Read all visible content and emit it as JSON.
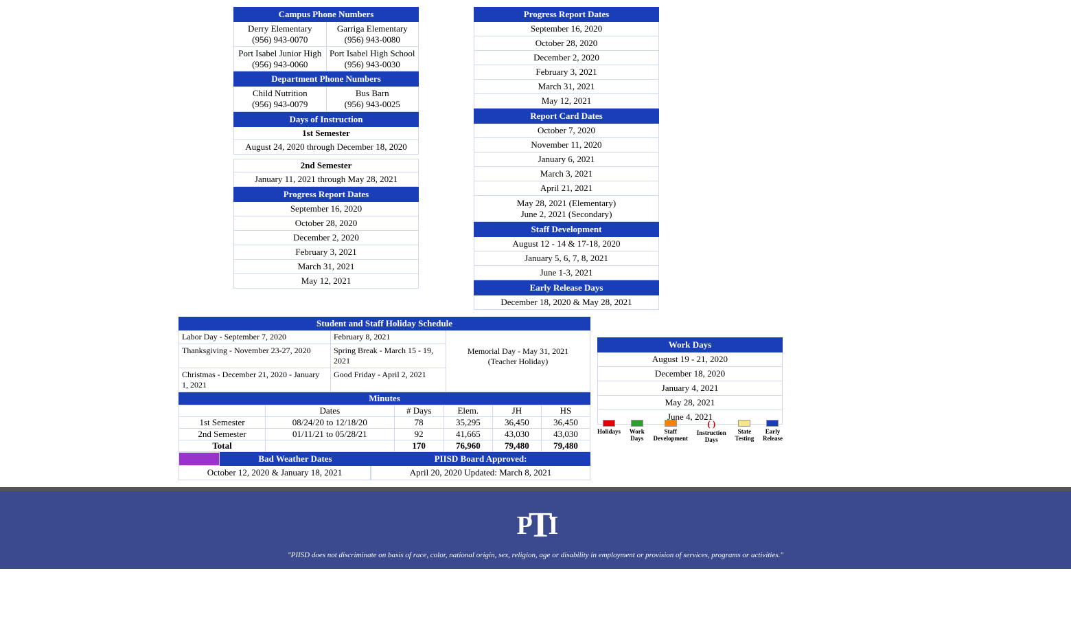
{
  "colors": {
    "header_bg": "#1a3eb8",
    "header_fg": "#ffffff",
    "border": "#cfd8ef",
    "footer_bg": "#3b4a8f",
    "purple": "#9933cc"
  },
  "campus_phone": {
    "header": "Campus Phone Numbers",
    "rows": [
      {
        "left_name": "Derry Elementary",
        "left_phone": "(956) 943-0070",
        "right_name": "Garriga Elementary",
        "right_phone": "(956) 943-0080"
      },
      {
        "left_name": "Port Isabel Junior High",
        "left_phone": "(956) 943-0060",
        "right_name": "Port Isabel High School",
        "right_phone": "(956) 943-0030"
      }
    ]
  },
  "dept_phone": {
    "header": "Department Phone Numbers",
    "rows": [
      {
        "left_name": "Child Nutrition",
        "left_phone": "(956) 943-0079",
        "right_name": "Bus Barn",
        "right_phone": "(956) 943-0025"
      }
    ]
  },
  "days_instruction": {
    "header": "Days of Instruction",
    "sem1_label": "1st Semester",
    "sem1_range": "August 24, 2020 through December 18, 2020",
    "sem2_label": "2nd Semester",
    "sem2_range": "January 11, 2021 through May 28, 2021"
  },
  "progress_left": {
    "header": "Progress Report Dates",
    "dates": [
      "September 16, 2020",
      "October 28, 2020",
      "December 2, 2020",
      "February 3, 2021",
      "March 31, 2021",
      "May 12, 2021"
    ]
  },
  "progress_right": {
    "header": "Progress Report Dates",
    "dates": [
      "September 16, 2020",
      "October 28, 2020",
      "December 2, 2020",
      "February 3, 2021",
      "March 31, 2021",
      "May 12, 2021"
    ]
  },
  "report_card": {
    "header": "Report Card Dates",
    "dates": [
      "October 7, 2020",
      "November 11, 2020",
      "January 6, 2021",
      "March 3, 2021",
      "April 21, 2021"
    ],
    "last_line1": "May 28, 2021 (Elementary)",
    "last_line2": "June 2, 2021 (Secondary)"
  },
  "staff_dev": {
    "header": "Staff Development",
    "dates": [
      "August 12 - 14 & 17-18, 2020",
      "January 5, 6, 7, 8, 2021",
      "June 1-3, 2021"
    ]
  },
  "early_release": {
    "header": "Early Release Days",
    "dates": [
      "December 18, 2020 & May 28, 2021"
    ]
  },
  "holidays": {
    "header": "Student and Staff Holiday Schedule",
    "col1": [
      "Labor Day - September 7, 2020",
      "Thanksgiving - November 23-27, 2020",
      "Christmas - December 21, 2020 - January 1, 2021"
    ],
    "col2": [
      "February 8, 2021",
      "Spring Break - March 15 - 19,  2021",
      "Good Friday - April 2, 2021"
    ],
    "col3_line1": "Memorial Day - May 31, 2021",
    "col3_line2": "(Teacher Holiday)"
  },
  "minutes": {
    "header": "Minutes",
    "columns": [
      "",
      "Dates",
      "# Days",
      "Elem.",
      "JH",
      "HS"
    ],
    "rows": [
      [
        "1st Semester",
        "08/24/20 to 12/18/20",
        "78",
        "35,295",
        "36,450",
        "36,450"
      ],
      [
        "2nd Semester",
        "01/11/21 to 05/28/21",
        "92",
        "41,665",
        "43,030",
        "43,030"
      ]
    ],
    "total_label": "Total",
    "total": [
      "",
      "",
      "170",
      "76,960",
      "79,480",
      "79,480"
    ]
  },
  "bad_weather": {
    "header": "Bad Weather Dates",
    "value": "October 12, 2020 & January 18, 2021"
  },
  "board_approved": {
    "header": "PIISD Board Approved:",
    "value": "April 20, 2020 Updated: March 8, 2021"
  },
  "work_days": {
    "header": "Work Days",
    "dates": [
      "August 19 - 21, 2020",
      "December 18, 2020",
      "January 4, 2021",
      "May 28, 2021",
      "June 4, 2021"
    ]
  },
  "legend": [
    {
      "label": "Holidays",
      "color": "#e60000"
    },
    {
      "label": "Work Days",
      "color": "#2e9e2e"
    },
    {
      "label": "Staff Development",
      "color": "#ff7f00"
    },
    {
      "label": "Instruction Days",
      "color": "circle"
    },
    {
      "label": "State Testing",
      "color": "#f5e68c"
    },
    {
      "label": "Early Release",
      "color": "#1a3eb8"
    }
  ],
  "footer": {
    "logo_text": "PTI",
    "disclaimer": "\"PIISD does not discriminate on basis of race, color, national origin, sex, religion, age or disability in employment or provision of services, programs or activities.\""
  }
}
